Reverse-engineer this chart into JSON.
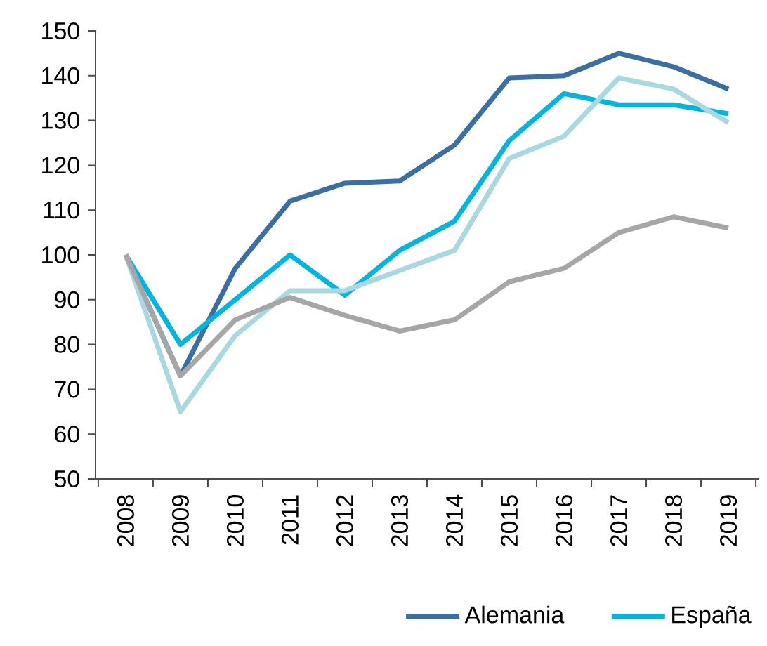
{
  "chart_data": {
    "type": "line",
    "categories": [
      "2008",
      "2009",
      "2010",
      "2011",
      "2012",
      "2013",
      "2014",
      "2015",
      "2016",
      "2017",
      "2018",
      "2019"
    ],
    "series": [
      {
        "name": "Alemania",
        "color": "#3a6ea5",
        "values": [
          100,
          73,
          97,
          112,
          116,
          116.5,
          124.5,
          139.5,
          140,
          145,
          142,
          137
        ]
      },
      {
        "name": "España",
        "color": "#00b5e2",
        "values": [
          100,
          80,
          90,
          100,
          91,
          101,
          107.5,
          125.5,
          136,
          133.5,
          133.5,
          131.5
        ]
      },
      {
        "color": "#a8d8e0",
        "values": [
          100,
          65,
          82,
          92,
          92,
          96.5,
          101,
          121.5,
          126.5,
          139.5,
          137,
          129.5
        ]
      },
      {
        "color": "#a6a6a6",
        "values": [
          100,
          73,
          85.5,
          90.5,
          86.5,
          83,
          85.5,
          94,
          97,
          105,
          108.5,
          106
        ]
      }
    ],
    "ylim": [
      50,
      150
    ],
    "yticks": [
      50,
      60,
      70,
      80,
      90,
      100,
      110,
      120,
      130,
      140,
      150
    ],
    "legend": "bottom",
    "marker": "none",
    "line_style": "solid"
  }
}
